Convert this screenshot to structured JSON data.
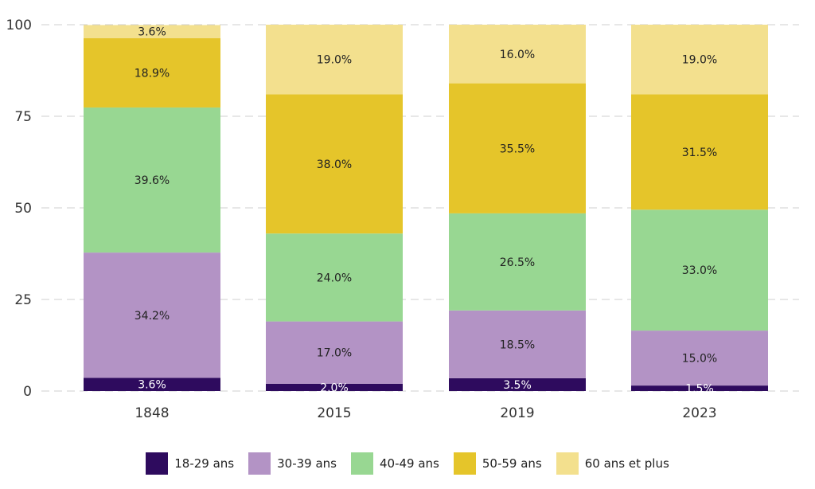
{
  "chart_data": {
    "type": "bar",
    "stacked": true,
    "categories": [
      "1848",
      "2015",
      "2019",
      "2023"
    ],
    "ylim": [
      0,
      100
    ],
    "yticks": [
      0,
      25,
      50,
      75,
      100
    ],
    "grid": true,
    "legend_position": "bottom",
    "series": [
      {
        "name": "18-29 ans",
        "color": "#2e0b5e",
        "label_color": "#ffffff",
        "values": [
          3.6,
          2.0,
          3.5,
          1.5
        ],
        "labels": [
          "3.6%",
          "2.0%",
          "3.5%",
          "1.5%"
        ]
      },
      {
        "name": "30-39 ans",
        "color": "#b393c5",
        "label_color": "#222222",
        "values": [
          34.2,
          17.0,
          18.5,
          15.0
        ],
        "labels": [
          "34.2%",
          "17.0%",
          "18.5%",
          "15.0%"
        ]
      },
      {
        "name": "40-49 ans",
        "color": "#98d792",
        "label_color": "#222222",
        "values": [
          39.6,
          24.0,
          26.5,
          33.0
        ],
        "labels": [
          "39.6%",
          "24.0%",
          "26.5%",
          "33.0%"
        ]
      },
      {
        "name": "50-59 ans",
        "color": "#e5c52a",
        "label_color": "#222222",
        "values": [
          18.9,
          38.0,
          35.5,
          31.5
        ],
        "labels": [
          "18.9%",
          "38.0%",
          "35.5%",
          "31.5%"
        ]
      },
      {
        "name": "60 ans et plus",
        "color": "#f3e08e",
        "label_color": "#222222",
        "values": [
          3.6,
          19.0,
          16.0,
          19.0
        ],
        "labels": [
          "3.6%",
          "19.0%",
          "16.0%",
          "19.0%"
        ]
      }
    ]
  }
}
